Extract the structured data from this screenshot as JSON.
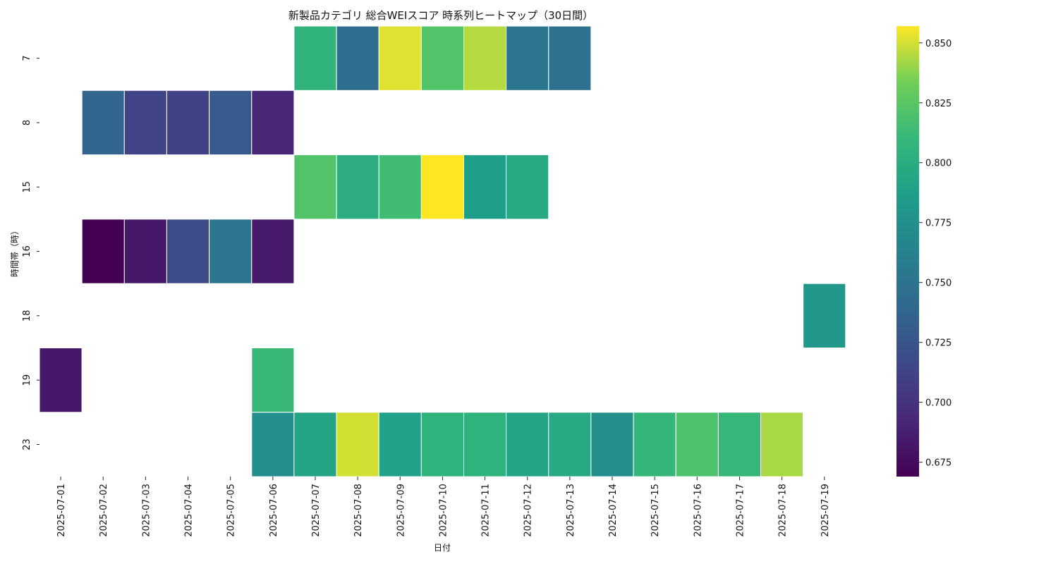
{
  "chart_data": {
    "type": "heatmap",
    "title": "新製品カテゴリ 総合WEIスコア 時系列ヒートマップ（30日間）",
    "xlabel": "日付",
    "ylabel": "時間帯（時）",
    "x_categories": [
      "2025-07-01",
      "2025-07-02",
      "2025-07-03",
      "2025-07-04",
      "2025-07-05",
      "2025-07-06",
      "2025-07-07",
      "2025-07-08",
      "2025-07-09",
      "2025-07-10",
      "2025-07-11",
      "2025-07-12",
      "2025-07-13",
      "2025-07-14",
      "2025-07-15",
      "2025-07-16",
      "2025-07-17",
      "2025-07-18",
      "2025-07-19"
    ],
    "y_categories": [
      "7",
      "8",
      "15",
      "16",
      "18",
      "19",
      "23"
    ],
    "values": [
      [
        null,
        null,
        null,
        null,
        null,
        null,
        0.806,
        0.744,
        0.852,
        0.822,
        0.845,
        0.752,
        0.748,
        null,
        null,
        null,
        null,
        null,
        null
      ],
      [
        null,
        0.738,
        0.712,
        0.71,
        0.73,
        0.692,
        null,
        null,
        null,
        null,
        null,
        null,
        null,
        null,
        null,
        null,
        null,
        null,
        null
      ],
      [
        null,
        null,
        null,
        null,
        null,
        null,
        0.822,
        0.8,
        0.814,
        0.857,
        0.787,
        0.797,
        null,
        null,
        null,
        null,
        null,
        null,
        null
      ],
      [
        null,
        0.669,
        0.683,
        0.718,
        0.752,
        0.684,
        null,
        null,
        null,
        null,
        null,
        null,
        null,
        null,
        null,
        null,
        null,
        null,
        null
      ],
      [
        null,
        null,
        null,
        null,
        null,
        null,
        null,
        null,
        null,
        null,
        null,
        null,
        null,
        null,
        null,
        null,
        null,
        null,
        0.781
      ],
      [
        0.683,
        null,
        null,
        null,
        null,
        0.811,
        null,
        null,
        null,
        null,
        null,
        null,
        null,
        null,
        null,
        null,
        null,
        null,
        null
      ],
      [
        null,
        null,
        null,
        null,
        null,
        0.774,
        0.792,
        0.85,
        0.789,
        0.805,
        0.805,
        0.793,
        0.796,
        0.773,
        0.809,
        0.82,
        0.81,
        0.843,
        null
      ]
    ],
    "colormap": "viridis",
    "colorbar": {
      "range": [
        0.669,
        0.857
      ],
      "ticks": [
        0.675,
        0.7,
        0.725,
        0.75,
        0.775,
        0.8,
        0.825,
        0.85
      ],
      "tick_labels": [
        "0.675",
        "0.700",
        "0.725",
        "0.750",
        "0.775",
        "0.800",
        "0.825",
        "0.850"
      ]
    },
    "grid": false,
    "legend": "colorbar-right"
  }
}
